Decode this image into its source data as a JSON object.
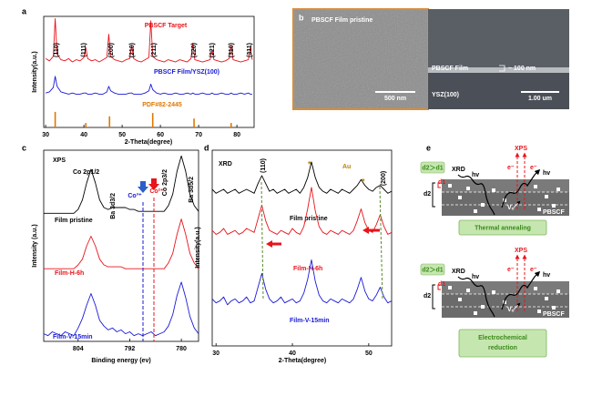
{
  "chart_data": [
    {
      "type": "line",
      "panel": "a",
      "xlabel": "2-Theta(degree)",
      "ylabel": "Intensity(a.u.)",
      "xlim": [
        29.5,
        84.5
      ],
      "xticks": [
        30,
        40,
        50,
        60,
        70,
        80
      ],
      "ylim": [
        0,
        100
      ],
      "x": [
        30,
        31,
        32,
        32.5,
        33,
        34,
        35,
        36,
        37,
        38,
        39,
        40,
        40.5,
        41,
        42,
        43,
        44,
        45,
        46,
        46.5,
        47,
        48,
        49,
        50,
        51,
        52,
        52.5,
        53,
        54,
        55,
        56,
        57,
        57.5,
        58,
        59,
        60,
        61,
        62,
        63,
        64,
        65,
        66,
        67,
        68,
        68.5,
        69,
        70,
        71,
        72,
        73,
        73.5,
        74,
        75,
        76,
        77,
        78,
        78.5,
        79,
        80,
        81,
        82,
        83,
        83.5,
        84
      ],
      "series": [
        {
          "name": "PBSCF Target",
          "color": "#e8141b",
          "values": [
            62,
            60,
            64,
            98,
            66,
            61,
            60,
            62,
            59,
            61,
            60,
            63,
            72,
            62,
            60,
            61,
            59,
            61,
            63,
            84,
            64,
            61,
            60,
            59,
            61,
            62,
            74,
            62,
            60,
            59,
            61,
            63,
            96,
            64,
            61,
            60,
            59,
            61,
            60,
            59,
            61,
            60,
            59,
            62,
            76,
            61,
            60,
            59,
            60,
            61,
            70,
            61,
            60,
            59,
            60,
            62,
            74,
            61,
            60,
            59,
            60,
            61,
            72,
            61
          ]
        },
        {
          "name": "PBSCF Film/YSZ(100)",
          "color": "#1a1ad6",
          "values": [
            31,
            32,
            36,
            46,
            37,
            32,
            31,
            30,
            31,
            30,
            30,
            31,
            31,
            30,
            30,
            31,
            30,
            30,
            32,
            37,
            33,
            31,
            30,
            30,
            30,
            31,
            31,
            30,
            30,
            30,
            31,
            33,
            39,
            34,
            31,
            30,
            31,
            30,
            30,
            31,
            30,
            30,
            31,
            30,
            31,
            30,
            30,
            31,
            30,
            30,
            31,
            30,
            30,
            31,
            30,
            30,
            31,
            30,
            30,
            31,
            30,
            31,
            30,
            30
          ]
        },
        {
          "name": "PDF#82-2445",
          "color": "#e07800",
          "style": "stick",
          "x": [
            32.5,
            40.5,
            46.7,
            58,
            68.8,
            78.5
          ],
          "values": [
            14,
            4,
            10,
            13,
            8,
            4
          ]
        }
      ],
      "annotations": [
        "(110)",
        "(111)",
        "(200)",
        "(210)",
        "(211)",
        "(220)",
        "(221)",
        "(310)",
        "(311)"
      ]
    },
    {
      "type": "line",
      "panel": "c",
      "xlabel": "Binding energy (ev)",
      "ylabel": "Intensity (a.u.)",
      "xlim": [
        812,
        776
      ],
      "xticks": [
        804,
        792,
        780
      ],
      "ylim": [
        0,
        100
      ],
      "x": [
        812,
        811,
        810,
        809,
        808,
        807,
        806,
        805,
        804,
        803,
        802,
        801,
        800,
        799,
        798,
        797,
        796,
        795,
        794,
        793,
        792,
        791,
        790,
        789,
        788,
        787,
        786,
        785,
        784,
        783,
        782,
        781,
        780,
        779,
        778,
        777,
        776
      ],
      "series": [
        {
          "name": "Film pristine",
          "color": "#000000",
          "values": [
            67,
            67,
            67,
            67,
            67,
            67,
            67,
            67,
            69,
            74,
            83,
            90,
            83,
            74,
            70,
            69,
            70,
            70,
            70,
            70,
            69,
            69,
            68,
            68,
            68,
            68,
            68,
            68,
            68,
            71,
            77,
            89,
            97,
            89,
            77,
            71,
            68
          ]
        },
        {
          "name": "Film-H-6h",
          "color": "#e8141b",
          "values": [
            38,
            38,
            38,
            38,
            38,
            38,
            38,
            38,
            40,
            43,
            50,
            55,
            50,
            43,
            40,
            39,
            39,
            39,
            39,
            38,
            38,
            38,
            38,
            38,
            38,
            38,
            38,
            38,
            38,
            41,
            46,
            56,
            64,
            56,
            46,
            41,
            38
          ]
        },
        {
          "name": "Film-V-15min",
          "color": "#1a1ad6",
          "values": [
            4,
            3,
            5,
            4,
            3,
            5,
            4,
            3,
            7,
            12,
            19,
            25,
            19,
            11,
            8,
            6,
            7,
            5,
            6,
            4,
            5,
            3,
            4,
            3,
            4,
            5,
            3,
            4,
            5,
            8,
            14,
            24,
            31,
            23,
            13,
            7,
            4
          ]
        }
      ],
      "annotations": [
        "XPS",
        "Co 2p1/2",
        "Ba 3d3/2",
        "Co 2p3/2",
        "Ba 3d5/2",
        "Co³⁺",
        "Co²⁺"
      ]
    },
    {
      "type": "line",
      "panel": "d",
      "xlabel": "2-Theta(degree)",
      "ylabel": "Intensity(a.u.)",
      "xlim": [
        29.5,
        53
      ],
      "xticks": [
        30,
        40,
        50
      ],
      "ylim": [
        0,
        100
      ],
      "x": [
        29.5,
        30,
        30.5,
        31,
        31.5,
        32,
        32.5,
        33,
        33.5,
        34,
        34.5,
        35,
        35.5,
        36,
        36.5,
        37,
        37.5,
        38,
        38.5,
        39,
        39.5,
        40,
        40.5,
        41,
        41.5,
        42,
        42.5,
        43,
        43.5,
        44,
        44.5,
        45,
        45.5,
        46,
        46.5,
        47,
        47.5,
        48,
        48.5,
        49,
        49.5,
        50,
        50.5,
        51,
        51.5,
        52,
        52.5,
        53
      ],
      "series": [
        {
          "name": "Film pristine",
          "color": "#000000",
          "values": [
            80,
            78,
            79,
            80,
            78,
            79,
            80,
            78,
            79,
            80,
            79,
            78,
            83,
            87,
            83,
            79,
            80,
            78,
            79,
            80,
            78,
            79,
            80,
            78,
            81,
            86,
            94,
            86,
            81,
            79,
            78,
            80,
            79,
            78,
            80,
            79,
            78,
            80,
            82,
            85,
            82,
            80,
            79,
            81,
            82,
            80,
            78,
            79
          ]
        },
        {
          "name": "Film-H-6h",
          "color": "#e8141b",
          "values": [
            59,
            57,
            58,
            60,
            57,
            58,
            59,
            57,
            58,
            60,
            59,
            58,
            65,
            72,
            64,
            59,
            58,
            57,
            59,
            58,
            57,
            60,
            58,
            57,
            61,
            70,
            81,
            69,
            61,
            58,
            57,
            59,
            58,
            57,
            59,
            58,
            57,
            59,
            64,
            70,
            63,
            59,
            58,
            62,
            67,
            61,
            57,
            58
          ]
        },
        {
          "name": "Film-V-15min",
          "color": "#1a1ad6",
          "values": [
            24,
            22,
            23,
            25,
            21,
            23,
            24,
            22,
            23,
            25,
            22,
            23,
            30,
            37,
            29,
            24,
            22,
            23,
            25,
            22,
            23,
            24,
            22,
            23,
            27,
            34,
            44,
            33,
            26,
            23,
            22,
            24,
            23,
            22,
            24,
            23,
            22,
            24,
            29,
            35,
            28,
            24,
            23,
            26,
            30,
            25,
            22,
            23
          ]
        }
      ],
      "annotations": [
        "XRD",
        "(110)",
        "Au",
        "*",
        "*",
        "(200)"
      ]
    }
  ],
  "panel_b": {
    "panel": "b",
    "left_title": "PBSCF Film pristine",
    "left_scale": "500 nm",
    "film": "PBSCF Film",
    "thickness": "~ 100 nm",
    "substrate": "YSZ(100)",
    "right_scale": "1.00 um"
  },
  "panel_e": {
    "panel": "e",
    "top": {
      "xrd": "XRD",
      "xps": "XPS",
      "hv1": "hv",
      "hv2": "hv",
      "e1": "e⁻",
      "e2": "e⁻",
      "compare": "d2＞d1",
      "d2": "d2",
      "d1": "d1",
      "vo": "Vₒ",
      "material": "PBSCF",
      "process": "Thermal  annealing"
    },
    "bottom": {
      "xrd": "XRD",
      "xps": "XPS",
      "hv1": "hv",
      "hv2": "hv",
      "e1": "e⁻",
      "e2": "e⁻",
      "compare": "d2＞d1",
      "d2": "d2",
      "d1": "d1",
      "vo": "Vₒ",
      "material": "PBSCF",
      "process_lines": [
        "Electrochemical",
        "reduction"
      ]
    }
  }
}
